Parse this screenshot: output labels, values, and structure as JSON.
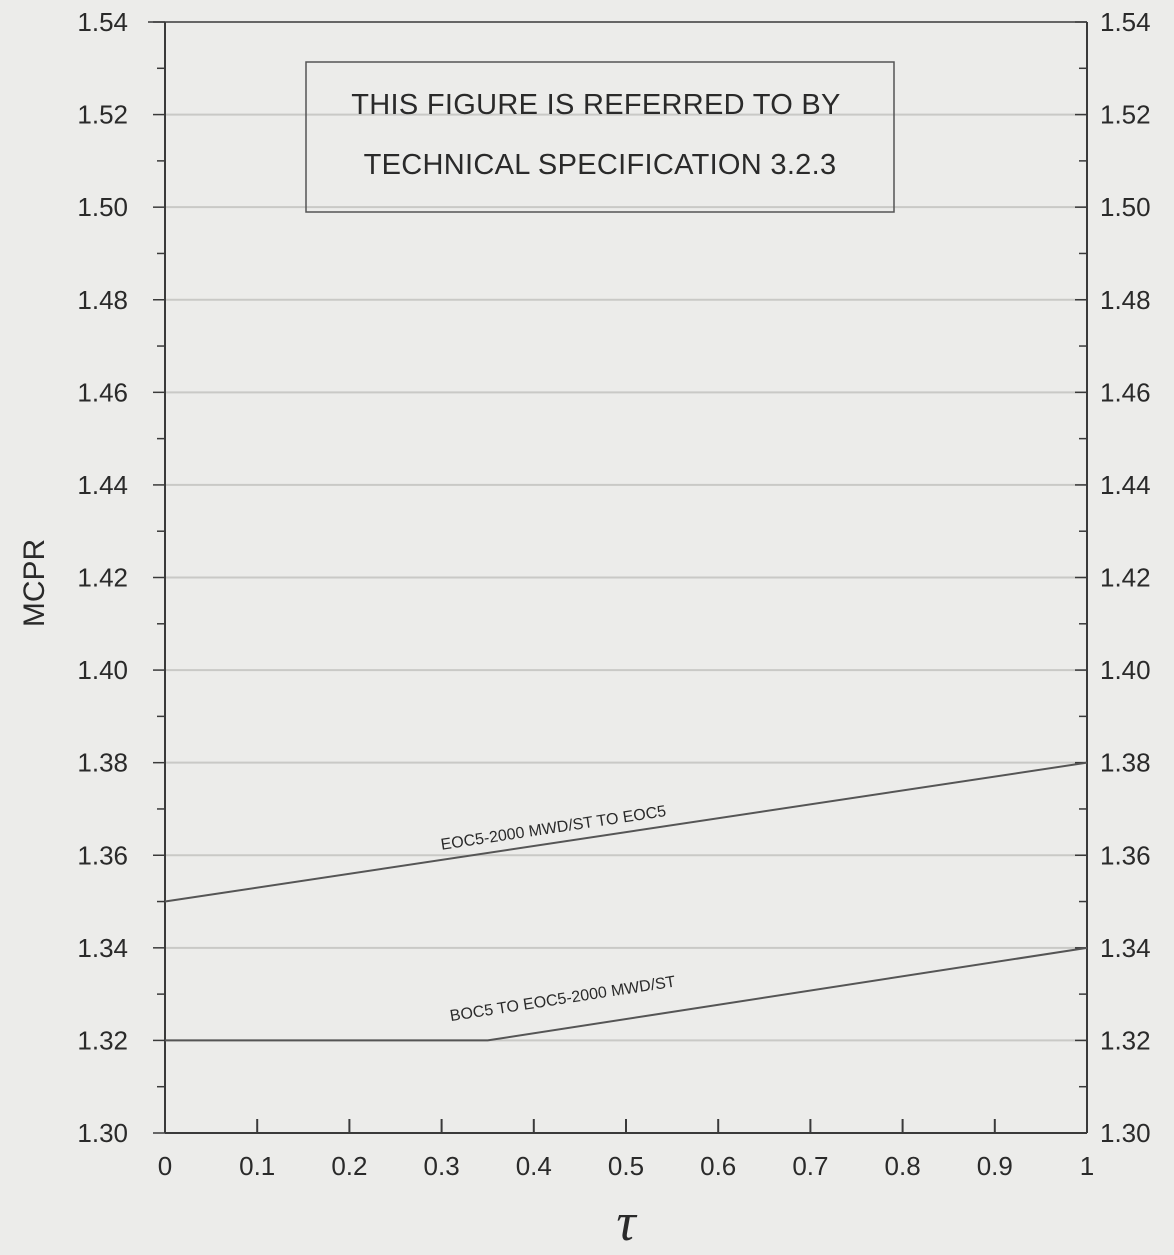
{
  "chart_data": {
    "type": "line",
    "title": "",
    "xlabel": "τ",
    "ylabel": "MCPR",
    "xlim": [
      0,
      1
    ],
    "ylim": [
      1.3,
      1.54
    ],
    "x_ticks": [
      "0",
      "0.1",
      "0.2",
      "0.3",
      "0.4",
      "0.5",
      "0.6",
      "0.7",
      "0.8",
      "0.9",
      "1"
    ],
    "y_ticks": [
      "1.30",
      "1.32",
      "1.34",
      "1.36",
      "1.38",
      "1.40",
      "1.42",
      "1.44",
      "1.46",
      "1.48",
      "1.50",
      "1.52",
      "1.54"
    ],
    "grid": true,
    "note": [
      "THIS FIGURE IS REFERRED TO BY",
      "TECHNICAL SPECIFICATION 3.2.3"
    ],
    "series": [
      {
        "name": "EOC5-2000 MWD/ST TO EOC5",
        "x": [
          0,
          1
        ],
        "y": [
          1.35,
          1.38
        ]
      },
      {
        "name": "BOC5 TO EOC5-2000 MWD/ST",
        "x": [
          0,
          0.35,
          1
        ],
        "y": [
          1.32,
          1.32,
          1.34
        ]
      }
    ]
  },
  "colors": {
    "background": "#ececea",
    "axis": "#3a3a3a",
    "grid": "#c9c9c6",
    "series": "#555555"
  }
}
